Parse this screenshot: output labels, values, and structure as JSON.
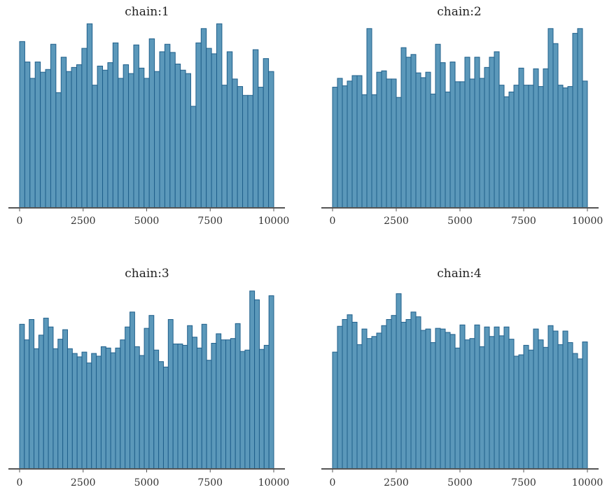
{
  "chart_data": [
    {
      "type": "bar",
      "title": "chain:1",
      "x_ticks": [
        0,
        2500,
        5000,
        7500,
        10000
      ],
      "xlim": [
        0,
        10000
      ],
      "ylim": [
        0,
        270
      ],
      "bin_width": 250,
      "values": [
        244,
        214,
        190,
        214,
        199,
        203,
        240,
        169,
        221,
        200,
        206,
        210,
        234,
        270,
        180,
        208,
        202,
        213,
        242,
        190,
        210,
        197,
        239,
        205,
        190,
        248,
        200,
        229,
        240,
        228,
        211,
        202,
        197,
        149,
        242,
        263,
        234,
        226,
        270,
        180,
        229,
        189,
        178,
        165,
        165,
        232,
        177,
        219,
        200
      ]
    },
    {
      "type": "bar",
      "title": "chain:2",
      "x_ticks": [
        0,
        2500,
        5000,
        7500,
        10000
      ],
      "xlim": [
        0,
        10000
      ],
      "ylim": [
        0,
        270
      ],
      "bin_width": 250,
      "values": [
        177,
        190,
        179,
        186,
        194,
        194,
        166,
        263,
        166,
        199,
        201,
        189,
        189,
        162,
        235,
        221,
        225,
        198,
        191,
        199,
        167,
        240,
        213,
        170,
        214,
        185,
        185,
        221,
        189,
        221,
        190,
        206,
        221,
        229,
        180,
        163,
        170,
        180,
        205,
        180,
        180,
        204,
        178,
        204,
        263,
        241,
        180,
        176,
        178,
        256,
        263,
        186
      ]
    },
    {
      "type": "bar",
      "title": "chain:3",
      "x_ticks": [
        0,
        2500,
        5000,
        7500,
        10000
      ],
      "xlim": [
        0,
        10000
      ],
      "ylim": [
        0,
        270
      ],
      "bin_width": 250,
      "values": [
        213,
        190,
        220,
        177,
        197,
        222,
        209,
        177,
        191,
        205,
        177,
        170,
        165,
        172,
        156,
        170,
        166,
        180,
        178,
        171,
        178,
        190,
        209,
        231,
        180,
        167,
        207,
        226,
        175,
        158,
        150,
        220,
        184,
        184,
        182,
        211,
        194,
        178,
        213,
        160,
        185,
        199,
        190,
        190,
        192,
        214,
        173,
        175,
        262,
        249,
        176,
        182,
        255
      ]
    },
    {
      "type": "bar",
      "title": "chain:4",
      "x_ticks": [
        0,
        2500,
        5000,
        7500,
        10000
      ],
      "xlim": [
        0,
        10000
      ],
      "ylim": [
        0,
        270
      ],
      "bin_width": 250,
      "values": [
        172,
        210,
        220,
        227,
        216,
        183,
        206,
        192,
        195,
        200,
        211,
        220,
        226,
        258,
        216,
        220,
        231,
        224,
        204,
        206,
        186,
        207,
        206,
        201,
        198,
        178,
        212,
        190,
        192,
        212,
        180,
        209,
        195,
        209,
        196,
        209,
        191,
        166,
        168,
        182,
        175,
        206,
        190,
        179,
        211,
        203,
        183,
        203,
        186,
        170,
        162,
        187
      ]
    }
  ]
}
